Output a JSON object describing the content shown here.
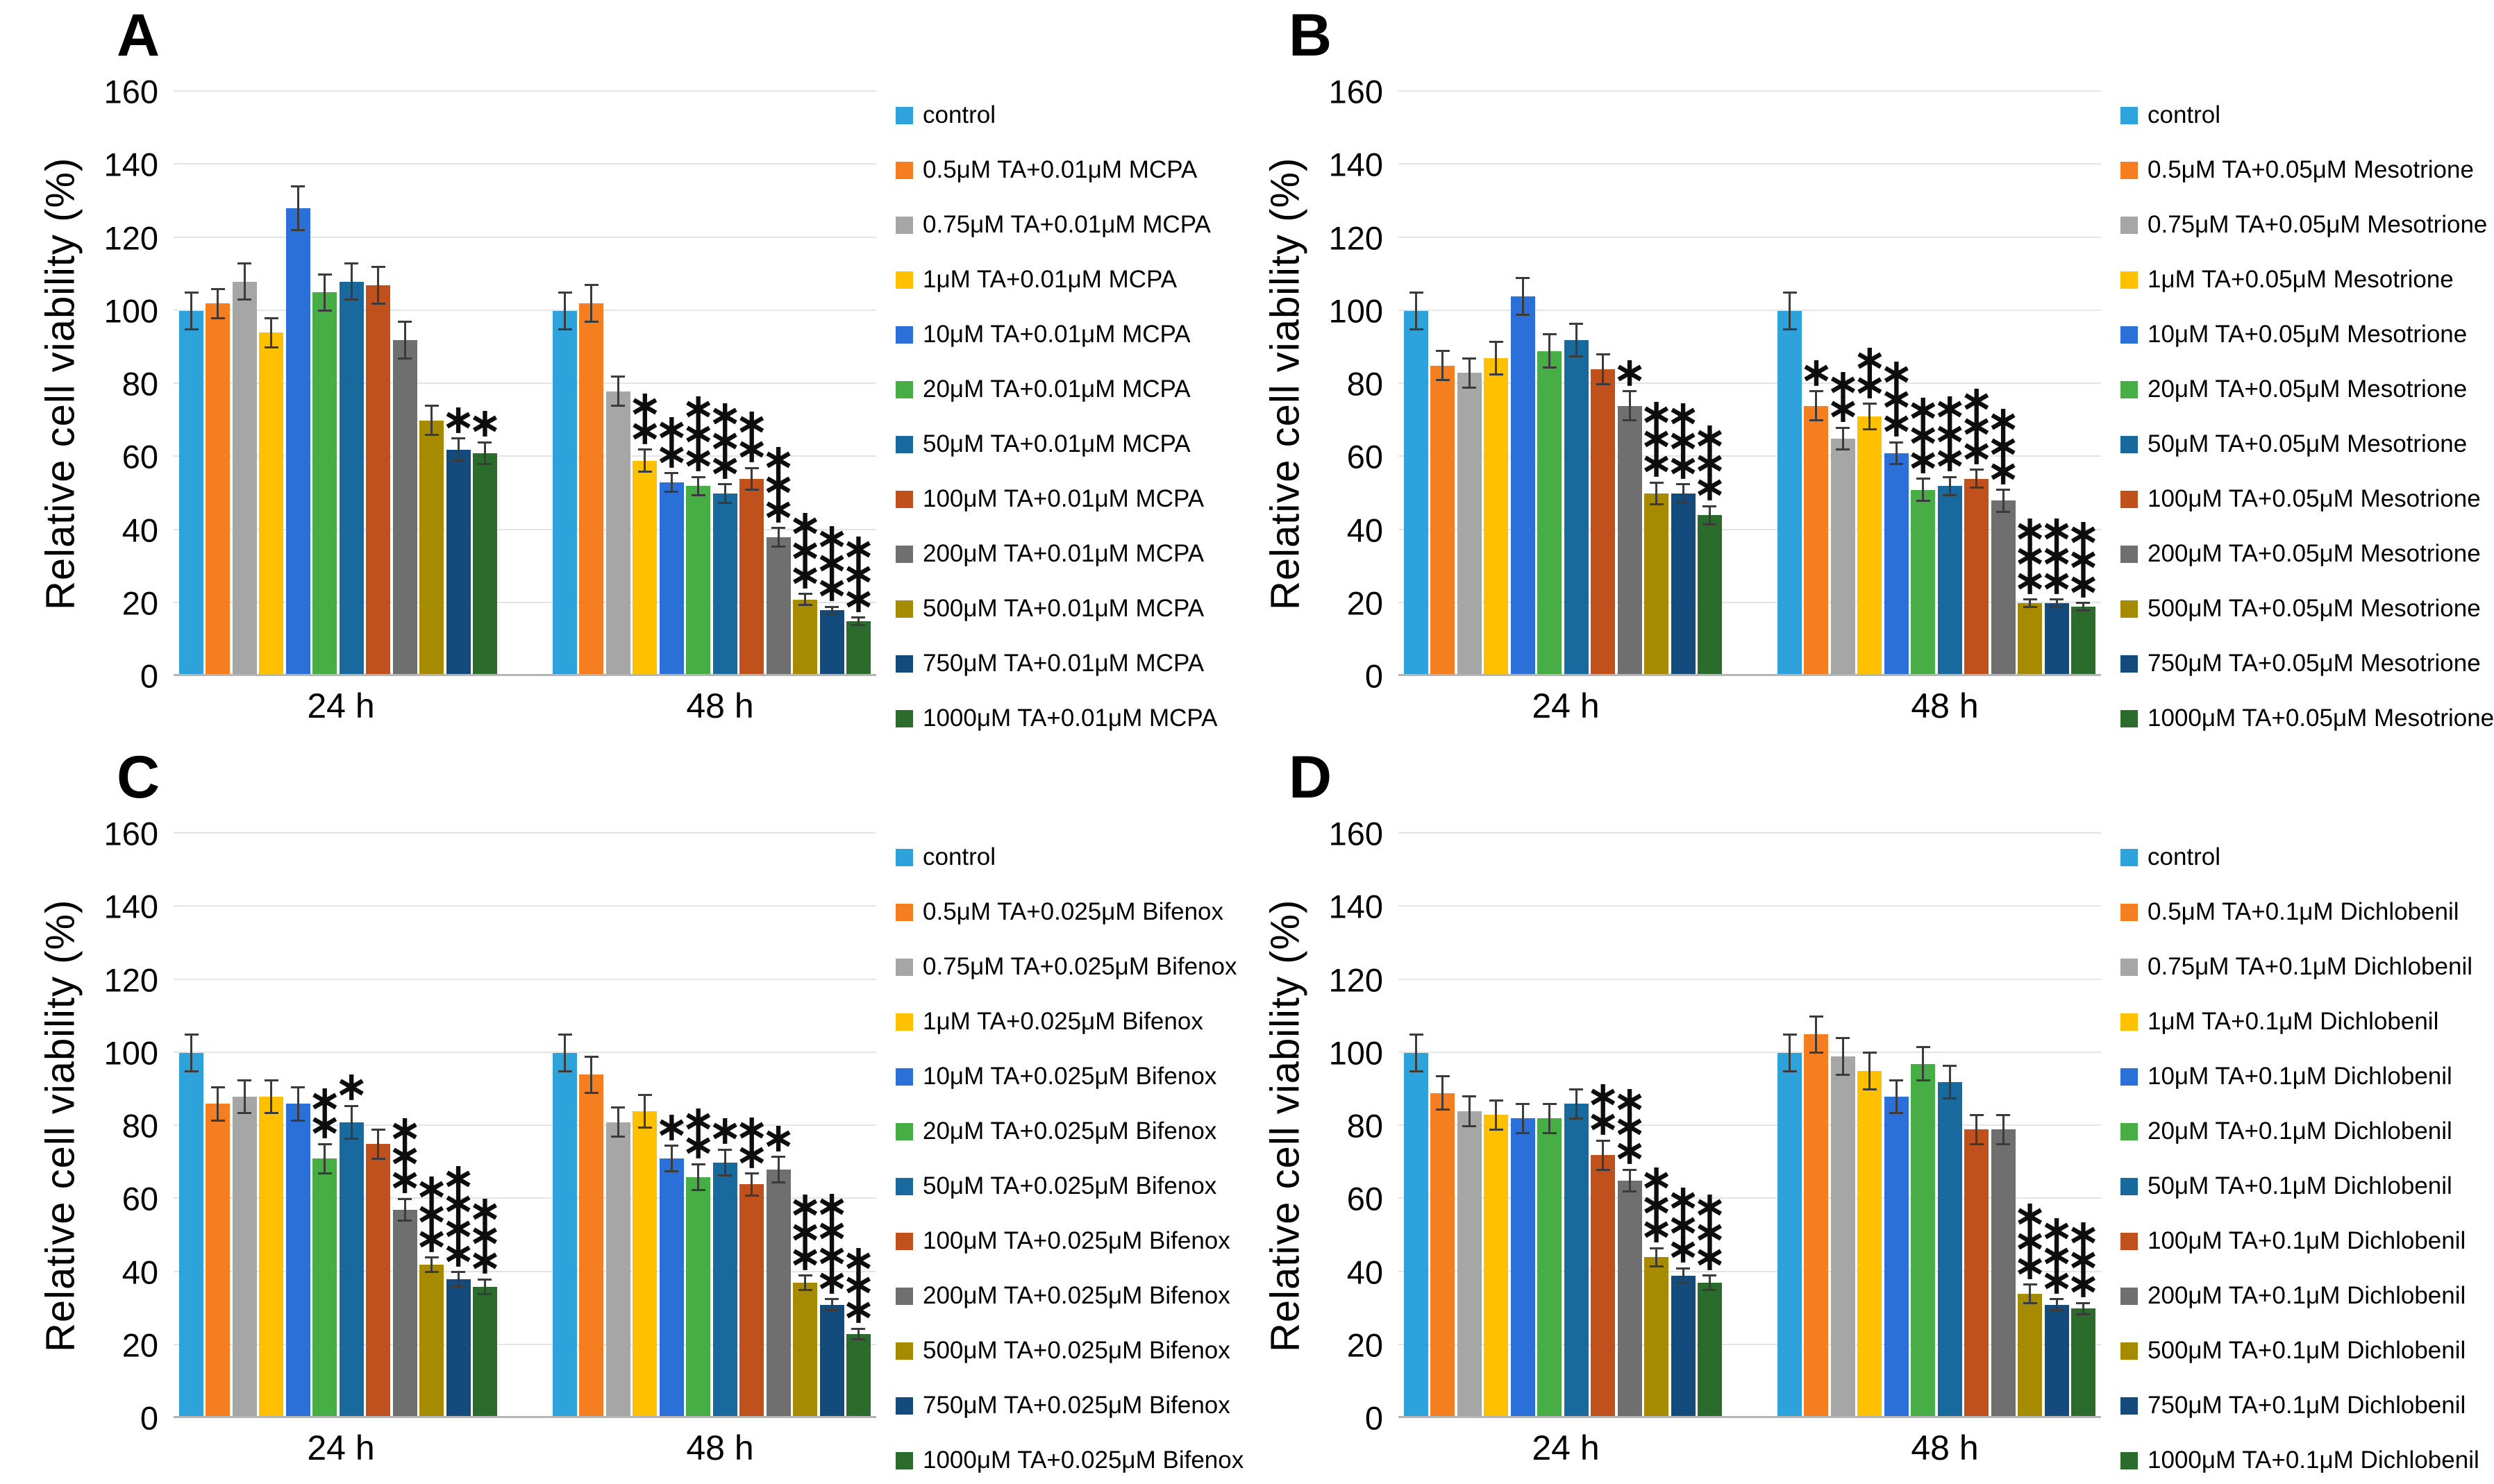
{
  "axis": {
    "ylabel": "Relative cell viability (%)",
    "ymax": 160,
    "ticks": [
      0,
      20,
      40,
      60,
      80,
      100,
      120,
      140,
      160
    ],
    "group_labels": [
      "24 h",
      "48 h"
    ],
    "grid": true,
    "gridline_color": "#e4e4e4"
  },
  "palette": [
    "#2ea2db",
    "#f57e20",
    "#a6a6a6",
    "#ffc000",
    "#2b70d9",
    "#47ad45",
    "#17699e",
    "#c0511c",
    "#6f6f6f",
    "#a68a00",
    "#134b7d",
    "#2b6b2b"
  ],
  "significance_symbol": "*",
  "chart_data": [
    {
      "panel_label": "A",
      "type": "bar",
      "ylabel": "Relative cell viability (%)",
      "ylim": [
        0,
        160
      ],
      "legend_position": "right",
      "series_labels": [
        "control",
        "0.5μM TA+0.01μM MCPA",
        "0.75μM TA+0.01μM MCPA",
        "1μM TA+0.01μM MCPA",
        "10μM TA+0.01μM MCPA",
        "20μM TA+0.01μM MCPA",
        "50μM TA+0.01μM MCPA",
        "100μM TA+0.01μM MCPA",
        "200μM TA+0.01μM MCPA",
        "500μM TA+0.01μM MCPA",
        "750μM TA+0.01μM MCPA",
        "1000μM TA+0.01μM MCPA"
      ],
      "groups": [
        {
          "label": "24 h",
          "values": [
            100,
            102,
            108,
            94,
            128,
            105,
            108,
            107,
            92,
            70,
            62,
            61
          ],
          "errors": [
            5,
            4,
            5,
            4,
            6,
            5,
            5,
            5,
            5,
            4,
            3,
            3
          ],
          "significance": [
            "",
            "",
            "",
            "",
            "",
            "",
            "",
            "",
            "",
            "",
            "*",
            "*"
          ]
        },
        {
          "label": "48 h",
          "values": [
            100,
            102,
            78,
            59,
            53,
            52,
            50,
            54,
            38,
            21,
            18,
            15
          ],
          "errors": [
            5,
            5,
            4,
            3,
            2.5,
            2.5,
            2.5,
            3,
            2.5,
            1.5,
            1,
            1
          ],
          "significance": [
            "",
            "",
            "",
            "**",
            "**",
            "***",
            "***",
            "**",
            "***",
            "***",
            "***",
            "***"
          ]
        }
      ]
    },
    {
      "panel_label": "B",
      "type": "bar",
      "ylabel": "Relative cell viability (%)",
      "ylim": [
        0,
        160
      ],
      "legend_position": "right",
      "series_labels": [
        "control",
        "0.5μM TA+0.05μM Mesotrione",
        "0.75μM TA+0.05μM Mesotrione",
        "1μM TA+0.05μM Mesotrione",
        "10μM TA+0.05μM Mesotrione",
        "20μM TA+0.05μM Mesotrione",
        "50μM TA+0.05μM Mesotrione",
        "100μM TA+0.05μM Mesotrione",
        "200μM TA+0.05μM Mesotrione",
        "500μM TA+0.05μM Mesotrione",
        "750μM TA+0.05μM Mesotrione",
        "1000μM TA+0.05μM Mesotrione"
      ],
      "groups": [
        {
          "label": "24 h",
          "values": [
            100,
            85,
            83,
            87,
            104,
            89,
            92,
            84,
            74,
            50,
            50,
            44
          ],
          "errors": [
            5,
            4,
            4,
            4.5,
            5,
            4.5,
            4.5,
            4,
            4,
            3,
            2.5,
            2.5
          ],
          "significance": [
            "",
            "",
            "",
            "",
            "",
            "",
            "",
            "",
            "*",
            "***",
            "***",
            "***"
          ]
        },
        {
          "label": "48 h",
          "values": [
            100,
            74,
            65,
            71,
            61,
            51,
            52,
            54,
            48,
            20,
            20,
            19
          ],
          "errors": [
            5,
            4,
            3,
            3.5,
            3,
            3,
            2.5,
            2.5,
            3,
            1,
            1,
            1
          ],
          "significance": [
            "",
            "*",
            "**",
            "**",
            "***",
            "***",
            "***",
            "***",
            "***",
            "***",
            "***",
            "***"
          ]
        }
      ]
    },
    {
      "panel_label": "C",
      "type": "bar",
      "ylabel": "Relative cell viability (%)",
      "ylim": [
        0,
        160
      ],
      "legend_position": "right",
      "series_labels": [
        "control",
        "0.5μM TA+0.025μM Bifenox",
        "0.75μM TA+0.025μM Bifenox",
        "1μM TA+0.025μM Bifenox",
        "10μM TA+0.025μM Bifenox",
        "20μM TA+0.025μM Bifenox",
        "50μM TA+0.025μM Bifenox",
        "100μM TA+0.025μM Bifenox",
        "200μM TA+0.025μM Bifenox",
        "500μM TA+0.025μM Bifenox",
        "750μM TA+0.025μM Bifenox",
        "1000μM TA+0.025μM Bifenox"
      ],
      "groups": [
        {
          "label": "24 h",
          "values": [
            100,
            86,
            88,
            88,
            86,
            71,
            81,
            75,
            57,
            42,
            38,
            36
          ],
          "errors": [
            5,
            4.5,
            4.5,
            4.5,
            4.5,
            4,
            4.5,
            4,
            3,
            2,
            2,
            2
          ],
          "significance": [
            "",
            "",
            "",
            "",
            "",
            "**",
            "*",
            "",
            "***",
            "***",
            "****",
            "***"
          ]
        },
        {
          "label": "48 h",
          "values": [
            100,
            94,
            81,
            84,
            71,
            66,
            70,
            64,
            68,
            37,
            31,
            23
          ],
          "errors": [
            5,
            5,
            4,
            4.5,
            3.5,
            3.5,
            3.5,
            3,
            3.5,
            2,
            1.5,
            1.5
          ],
          "significance": [
            "",
            "",
            "",
            "",
            "*",
            "**",
            "*",
            "**",
            "*",
            "***",
            "****",
            "***"
          ]
        }
      ]
    },
    {
      "panel_label": "D",
      "type": "bar",
      "ylabel": "Relative cell viability (%)",
      "ylim": [
        0,
        160
      ],
      "legend_position": "right",
      "series_labels": [
        "control",
        "0.5μM TA+0.1μM Dichlobenil",
        "0.75μM TA+0.1μM Dichlobenil",
        "1μM TA+0.1μM Dichlobenil",
        "10μM TA+0.1μM Dichlobenil",
        "20μM TA+0.1μM Dichlobenil",
        "50μM TA+0.1μM Dichlobenil",
        "100μM TA+0.1μM Dichlobenil",
        "200μM TA+0.1μM Dichlobenil",
        "500μM TA+0.1μM Dichlobenil",
        "750μM TA+0.1μM Dichlobenil",
        "1000μM TA+0.1μM Dichlobenil"
      ],
      "groups": [
        {
          "label": "24 h",
          "values": [
            100,
            89,
            84,
            83,
            82,
            82,
            86,
            72,
            65,
            44,
            39,
            37
          ],
          "errors": [
            5,
            4.5,
            4,
            4,
            4,
            4,
            4,
            4,
            3,
            2.5,
            2,
            2
          ],
          "significance": [
            "",
            "",
            "",
            "",
            "",
            "",
            "",
            "**",
            "***",
            "***",
            "***",
            "***"
          ]
        },
        {
          "label": "48 h",
          "values": [
            100,
            105,
            99,
            95,
            88,
            97,
            92,
            79,
            79,
            34,
            31,
            30
          ],
          "errors": [
            5,
            5,
            5,
            5,
            4.5,
            4.5,
            4.5,
            4,
            4,
            2.5,
            1.5,
            1.5
          ],
          "significance": [
            "",
            "",
            "",
            "",
            "",
            "",
            "",
            "",
            "",
            "***",
            "***",
            "***"
          ]
        }
      ]
    }
  ]
}
